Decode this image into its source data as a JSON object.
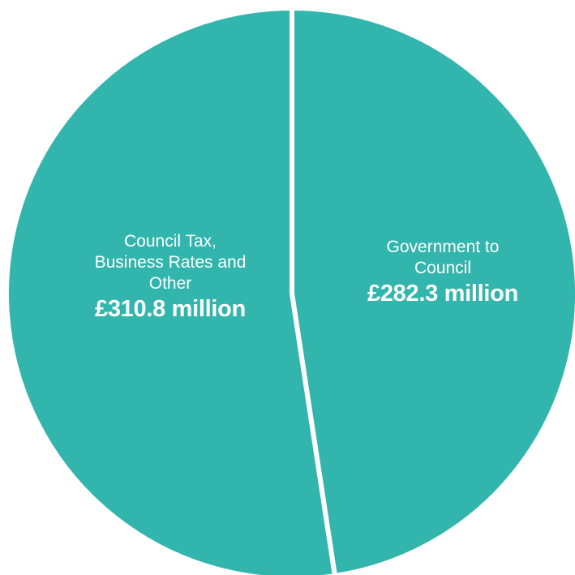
{
  "chart_data": {
    "type": "pie",
    "slices": [
      {
        "label": "Government to\nCouncil",
        "value": 282.3,
        "display_value": "£282.3 million",
        "color": "#32b5ac"
      },
      {
        "label": "Council Tax,\nBusiness Rates and\nOther",
        "value": 310.8,
        "display_value": "£310.8 million",
        "color": "#32b5ac"
      }
    ],
    "title": "",
    "legend": "none"
  }
}
